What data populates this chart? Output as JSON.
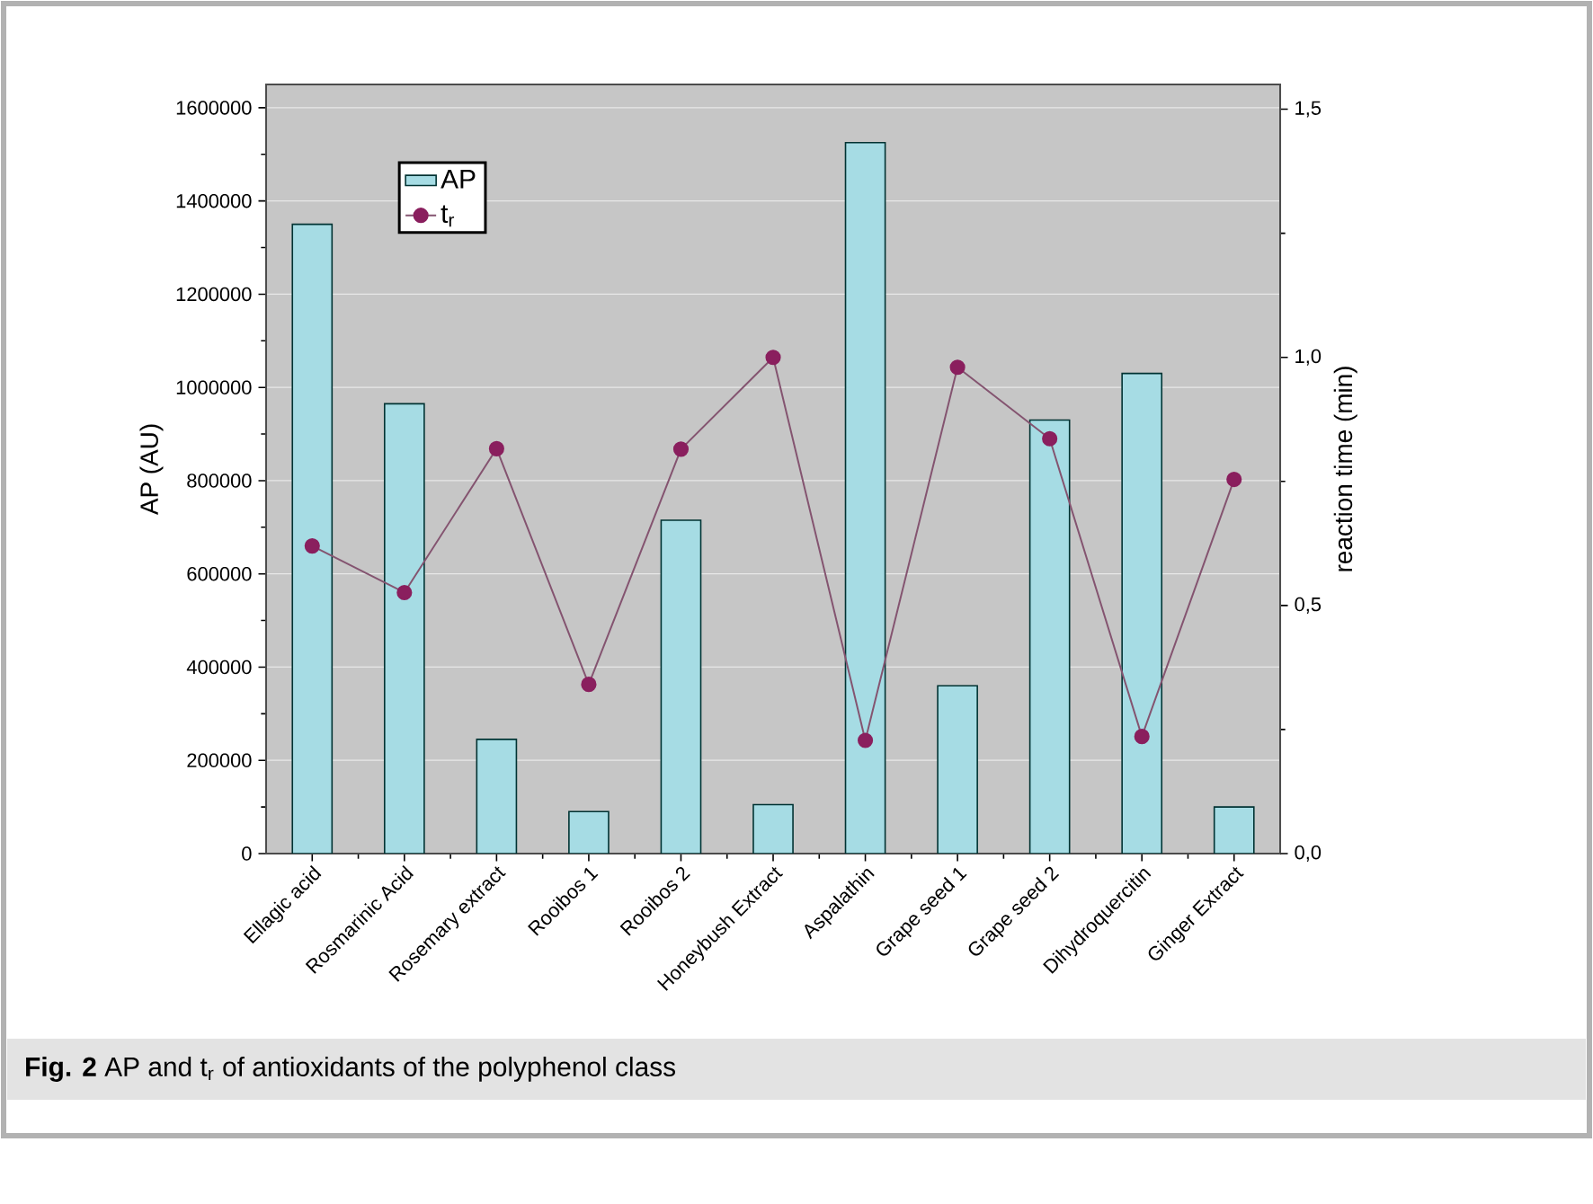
{
  "chart_data": {
    "type": "bar",
    "categories": [
      "Ellagic acid",
      "Rosmarinic Acid",
      "Rosemary extract",
      "Rooibos 1",
      "Rooibos 2",
      "Honeybush Extract",
      "Aspalathin",
      "Grape seed 1",
      "Grape seed 2",
      "Dihydroquercitin",
      "Ginger Extract"
    ],
    "series": [
      {
        "name": "AP",
        "color": "#a6dce4",
        "values": [
          1350000,
          965000,
          245000,
          90000,
          715000,
          105000,
          1525000,
          360000,
          930000,
          1030000,
          100000
        ]
      },
      {
        "name": "t$_{r}$",
        "type": "line",
        "axis": "y2",
        "color": "#8a1f5e",
        "values": [
          0.62,
          0.526,
          0.816,
          0.341,
          0.815,
          1.0,
          0.228,
          0.98,
          0.836,
          0.236,
          0.754
        ]
      }
    ],
    "ylabel": "AP (AU)",
    "y2label": "reaction time (min)",
    "ylim": [
      0,
      1650000
    ],
    "yticks": [
      0,
      200000,
      400000,
      600000,
      800000,
      1000000,
      1200000,
      1400000,
      1600000
    ],
    "y2lim": [
      0,
      1.55
    ],
    "y2ticks": [
      {
        "value": 0,
        "label": "0,0"
      },
      {
        "value": 0.5,
        "label": "0,5"
      },
      {
        "value": 1.0,
        "label": "1,0"
      },
      {
        "value": 1.5,
        "label": "1,5"
      }
    ],
    "grid": "y",
    "legend": "top left",
    "marker": "circle",
    "line_style": "solid",
    "annotations": [
      "**Fig. 2** AP and t$_{r}$ of antioxidants of the polyphenol class"
    ]
  }
}
